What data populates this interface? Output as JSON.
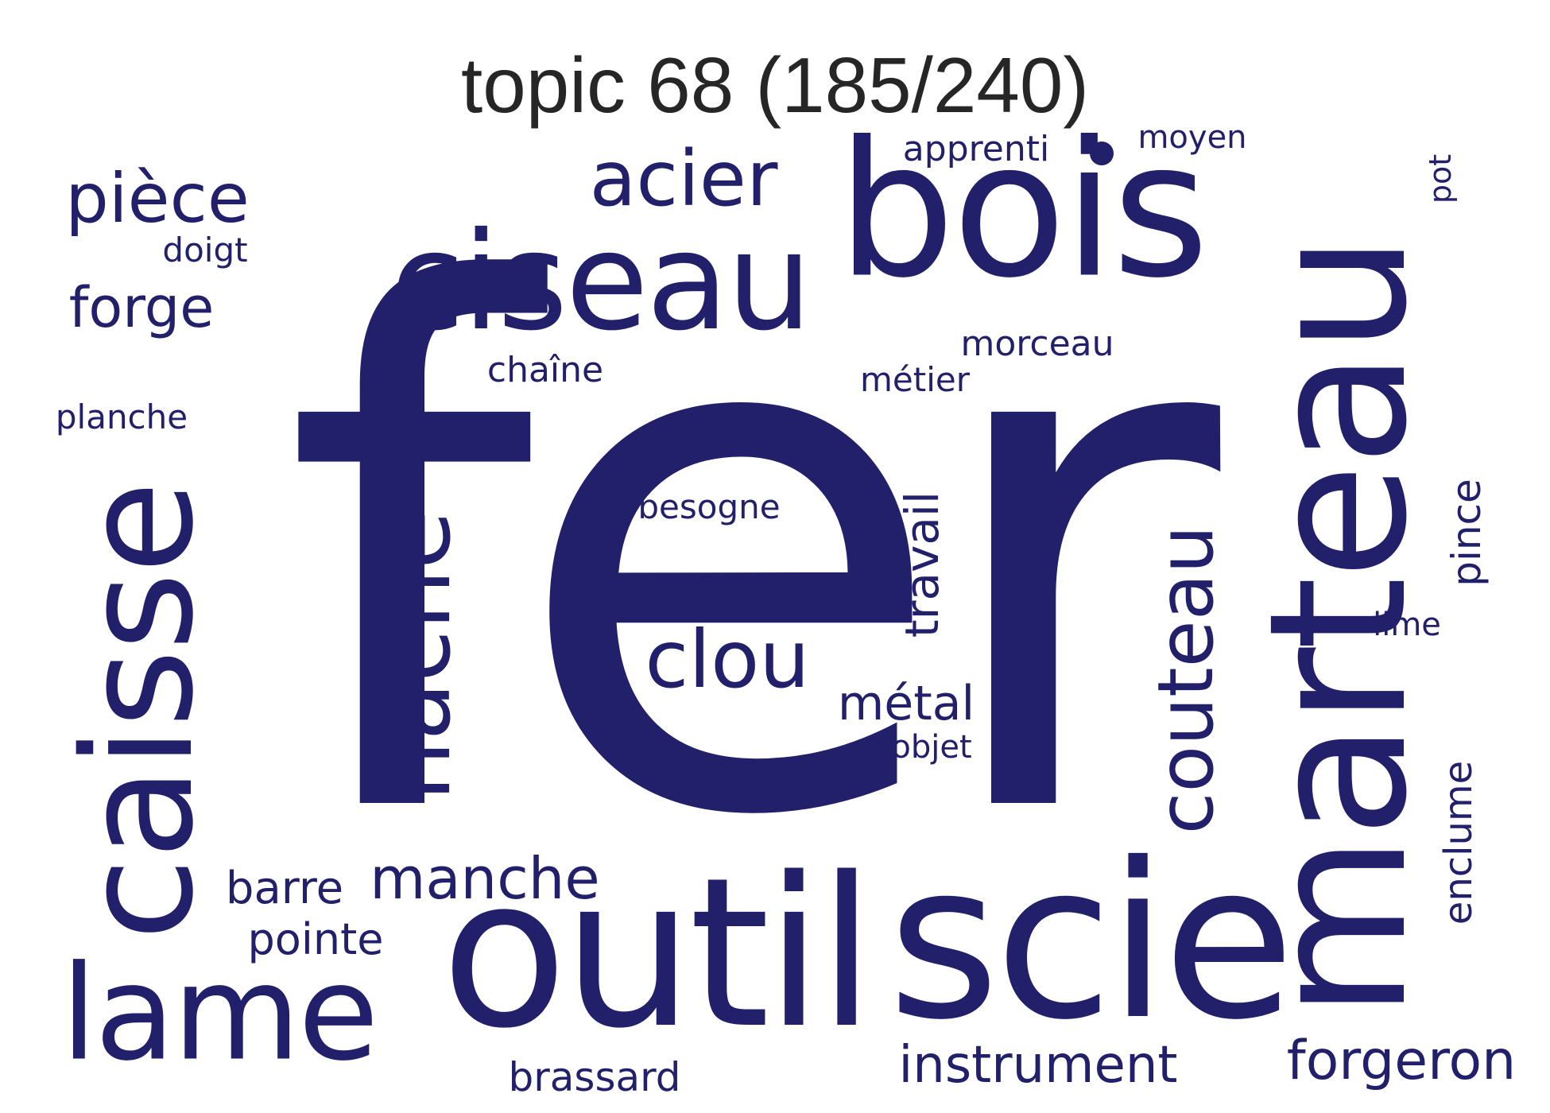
{
  "title": "topic 68 (185/240)",
  "colors": {
    "word": "#22206a",
    "title": "#262626",
    "background": "#ffffff"
  },
  "words": {
    "fer": "fer",
    "bois": "bois",
    "outil": "outil",
    "scie": "scie",
    "marteau": "marteau",
    "caisse": "caisse",
    "ciseau": "ciseau",
    "lame": "lame",
    "hache": "hache",
    "acier": "acier",
    "couteau": "couteau",
    "clou": "clou",
    "piece": "pièce",
    "manche": "manche",
    "forge": "forge",
    "instrument": "instrument",
    "forgeron": "forgeron",
    "travail": "travail",
    "metal": "métal",
    "barre": "barre",
    "pointe": "pointe",
    "enclume": "enclume",
    "pince": "pince",
    "brassard": "brassard",
    "apprenti": "apprenti",
    "morceau": "morceau",
    "moyen": "moyen",
    "chaine": "chaîne",
    "metier": "métier",
    "doigt": "doigt",
    "planche": "planche",
    "besogne": "besogne",
    "objet": "objet",
    "lime": "lime",
    "pot": "pot"
  }
}
